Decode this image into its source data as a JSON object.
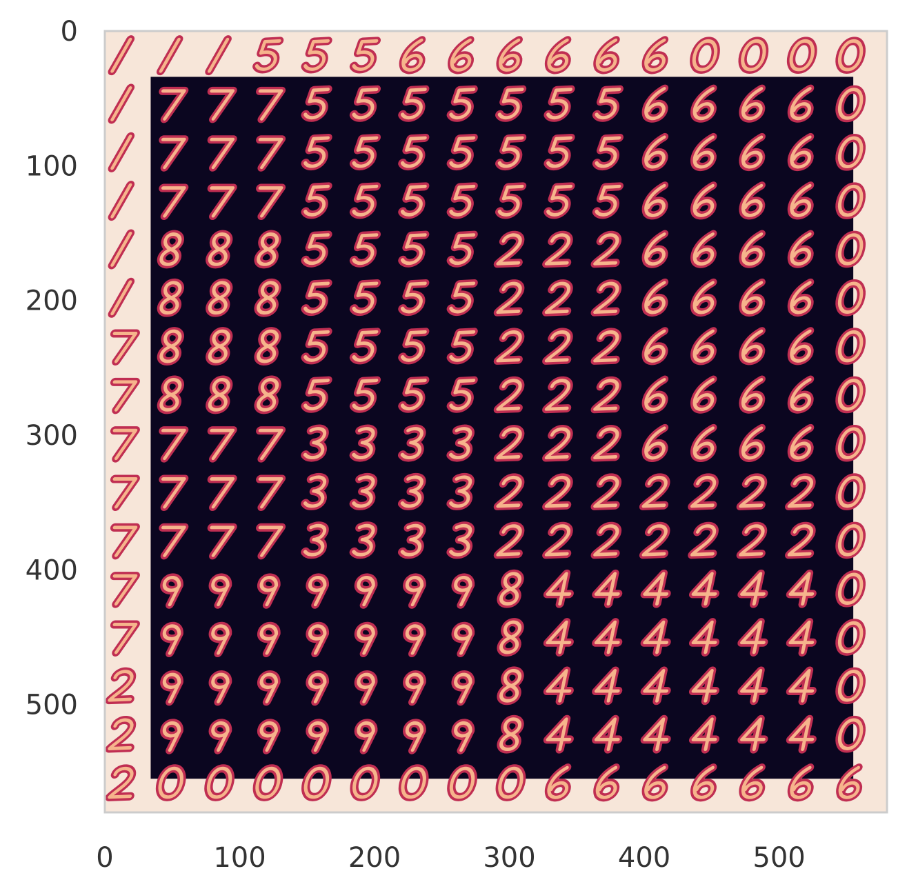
{
  "chart_data": {
    "type": "heatmap",
    "title": "",
    "xlabel": "",
    "ylabel": "",
    "xlim": [
      0,
      580
    ],
    "ylim": [
      580,
      0
    ],
    "x_ticks": [
      "0",
      "100",
      "200",
      "300",
      "400",
      "500"
    ],
    "y_ticks": [
      "0",
      "100",
      "200",
      "300",
      "400",
      "500"
    ],
    "grid": false,
    "grid_size": [
      16,
      16
    ],
    "cell_size": 28,
    "content": "tiled grid of generated handwritten digits (0-9 style glyphs) interpolating smoothly across a 2D latent space",
    "colormap": "rocket",
    "colors": {
      "background": "#f7e6d9",
      "canvas_dark": "#0b0620",
      "stroke_mid": "#c02e52",
      "stroke_light": "#f6b48c",
      "frame": "#cccccc",
      "tick_text": "#333333"
    }
  }
}
